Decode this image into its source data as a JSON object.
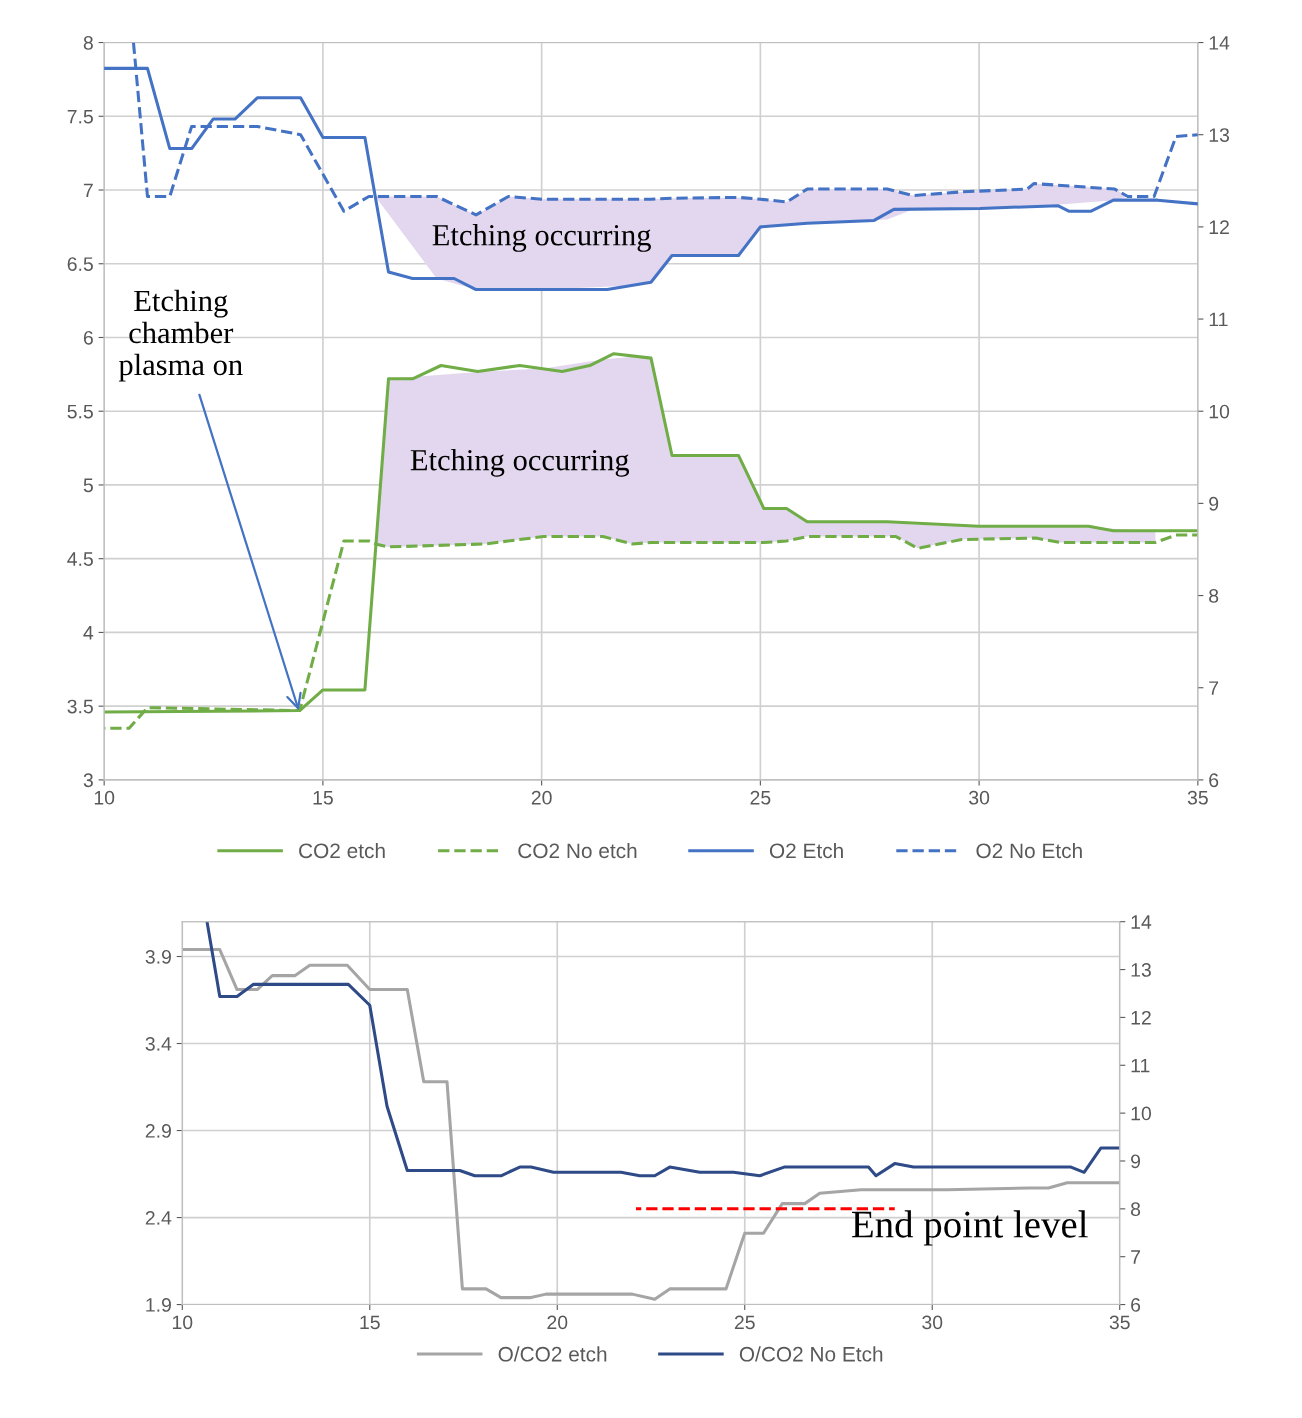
{
  "chart_data": [
    {
      "type": "line",
      "xlim": [
        10,
        35
      ],
      "xticks": [
        10,
        15,
        20,
        25,
        30,
        35
      ],
      "ylim": [
        3,
        8
      ],
      "yticks": [
        3,
        3.5,
        4,
        4.5,
        5,
        5.5,
        6,
        6.5,
        7,
        7.5,
        8
      ],
      "y2lim": [
        6,
        14
      ],
      "y2ticks": [
        6,
        7,
        8,
        9,
        10,
        11,
        12,
        13,
        14
      ],
      "grid": true,
      "legend": "bottom",
      "series": [
        {
          "name": "CO2 etch",
          "color": "#70ad47",
          "line_style": "solid",
          "x": [
            10,
            14.47,
            15.0,
            15.96,
            16.5,
            17.05,
            17.7,
            18.54,
            19.5,
            20.47,
            21.1,
            21.65,
            22.5,
            22.98,
            24.5,
            25.08,
            25.6,
            26.07,
            27.9,
            30.0,
            32.5,
            33.07,
            35.0
          ],
          "values": [
            3.46,
            3.47,
            3.61,
            3.61,
            5.72,
            5.72,
            5.81,
            5.77,
            5.81,
            5.77,
            5.81,
            5.89,
            5.86,
            5.2,
            5.2,
            4.84,
            4.84,
            4.75,
            4.75,
            4.72,
            4.72,
            4.69,
            4.69
          ]
        },
        {
          "name": "CO2 No etch",
          "color": "#70ad47",
          "line_style": "dashed",
          "x": [
            10,
            10.57,
            10.99,
            14.47,
            15.48,
            16.05,
            16.2,
            16.5,
            18.7,
            20.04,
            21.4,
            22.07,
            22.5,
            22.98,
            24.5,
            25.08,
            25.6,
            26.07,
            28.1,
            28.6,
            29.6,
            31.3,
            31.84,
            34.03,
            34.5,
            35
          ],
          "values": [
            3.35,
            3.35,
            3.49,
            3.47,
            4.62,
            4.62,
            4.6,
            4.58,
            4.6,
            4.65,
            4.65,
            4.6,
            4.61,
            4.61,
            4.61,
            4.61,
            4.62,
            4.65,
            4.65,
            4.57,
            4.63,
            4.64,
            4.61,
            4.61,
            4.66,
            4.66
          ],
          "lower": [
            null,
            null,
            null,
            null,
            null,
            null,
            4.6,
            4.58,
            4.6,
            4.65,
            4.65,
            4.6,
            4.61,
            4.61,
            4.61,
            4.61,
            4.62,
            4.65,
            4.65,
            4.57,
            4.63,
            4.64,
            4.61,
            4.61,
            null,
            null
          ],
          "upper": [
            null,
            null,
            null,
            null,
            null,
            null,
            4.6,
            5.72,
            5.77,
            5.79,
            5.85,
            5.87,
            5.86,
            5.2,
            5.2,
            4.84,
            4.84,
            4.75,
            4.74,
            4.73,
            4.72,
            4.72,
            4.72,
            4.69,
            null,
            null
          ]
        },
        {
          "name": "O2 Etch",
          "color": "#4472c4",
          "line_style": "solid",
          "axis": "y2",
          "x": [
            10,
            10.99,
            11.5,
            12.0,
            12.49,
            12.99,
            13.5,
            14.49,
            15.0,
            15.96,
            16.5,
            17.05,
            18.0,
            18.5,
            21.5,
            22.5,
            22.98,
            24.5,
            25.0,
            26.07,
            27.6,
            28.05,
            30.02,
            31.8,
            32.05,
            32.56,
            33.07,
            34.08,
            35.0
          ],
          "values": [
            13.72,
            13.72,
            12.85,
            12.85,
            13.17,
            13.17,
            13.4,
            13.4,
            12.97,
            12.97,
            11.51,
            11.44,
            11.44,
            11.32,
            11.32,
            11.4,
            11.69,
            11.69,
            12.0,
            12.04,
            12.07,
            12.19,
            12.2,
            12.23,
            12.17,
            12.17,
            12.29,
            12.29,
            12.25
          ]
        },
        {
          "name": "O2 No Etch",
          "color": "#4472c4",
          "line_style": "dashed",
          "axis": "y2",
          "x": [
            10.67,
            10.99,
            11.5,
            12.0,
            13.5,
            14.49,
            15.48,
            16.05,
            16.2,
            17.6,
            18.5,
            19.24,
            20.0,
            22.0,
            22.5,
            22.98,
            24.5,
            25.0,
            25.6,
            26.07,
            27.9,
            28.5,
            29.6,
            31.1,
            31.25,
            33.1,
            33.4,
            34.0,
            34.5,
            35.0
          ],
          "values": [
            14.0,
            12.33,
            12.33,
            13.09,
            13.09,
            13.0,
            12.17,
            12.33,
            12.33,
            12.33,
            12.13,
            12.33,
            12.3,
            12.3,
            12.3,
            12.31,
            12.32,
            12.3,
            12.27,
            12.41,
            12.41,
            12.34,
            12.38,
            12.41,
            12.47,
            12.41,
            12.33,
            12.33,
            12.98,
            13.0
          ],
          "lower": [
            null,
            null,
            null,
            null,
            null,
            null,
            null,
            null,
            12.33,
            11.44,
            11.32,
            11.32,
            11.32,
            11.36,
            11.4,
            11.69,
            11.69,
            12.0,
            12.02,
            12.04,
            12.08,
            12.19,
            12.2,
            12.22,
            12.22,
            12.29,
            12.33,
            null,
            null,
            null
          ],
          "upper": [
            null,
            null,
            null,
            null,
            null,
            null,
            null,
            null,
            12.33,
            12.33,
            12.13,
            12.33,
            12.3,
            12.3,
            12.3,
            12.31,
            12.32,
            12.3,
            12.27,
            12.41,
            12.41,
            12.34,
            12.38,
            12.41,
            12.47,
            12.41,
            12.33,
            null,
            null,
            null
          ]
        }
      ],
      "annotations": [
        "Etching occurring",
        "Etching occurring",
        {
          "text": "Etching\nchamber\nplasma on",
          "x": 14.45,
          "y": 3.47
        }
      ]
    },
    {
      "type": "line",
      "xlim": [
        10,
        35
      ],
      "xticks": [
        10,
        15,
        20,
        25,
        30,
        35
      ],
      "ylim": [
        1.9,
        4.1
      ],
      "yticks": [
        1.9,
        2.4,
        2.9,
        3.4,
        3.9
      ],
      "y2lim": [
        6,
        14
      ],
      "y2ticks": [
        6,
        7,
        8,
        9,
        10,
        11,
        12,
        13,
        14
      ],
      "grid": true,
      "legend": "bottom",
      "series": [
        {
          "name": "O/CO2 etch",
          "color": "#a5a5a5",
          "line_style": "solid",
          "x": [
            10,
            11.0,
            11.46,
            12.0,
            12.4,
            13.0,
            13.4,
            14.4,
            15.0,
            16.0,
            16.44,
            17.06,
            17.47,
            18.1,
            18.5,
            19.3,
            19.7,
            22.0,
            22.6,
            23.0,
            24.5,
            25.0,
            25.5,
            26.0,
            26.6,
            27.0,
            28.1,
            30.4,
            32.6,
            33.1,
            33.6,
            35.0
          ],
          "values": [
            3.94,
            3.94,
            3.71,
            3.71,
            3.79,
            3.79,
            3.85,
            3.85,
            3.71,
            3.71,
            3.18,
            3.18,
            1.99,
            1.99,
            1.94,
            1.94,
            1.96,
            1.96,
            1.93,
            1.99,
            1.99,
            2.31,
            2.31,
            2.48,
            2.48,
            2.54,
            2.56,
            2.56,
            2.57,
            2.57,
            2.6,
            2.6
          ]
        },
        {
          "name": "O/CO2 No Etch",
          "color": "#2e4a87",
          "line_style": "solid",
          "x": [
            10.66,
            11.0,
            11.46,
            11.9,
            14.43,
            15.0,
            15.46,
            16.0,
            17.4,
            17.8,
            18.5,
            19.0,
            19.3,
            19.9,
            21.7,
            22.2,
            22.6,
            23.0,
            23.8,
            24.7,
            25.4,
            26.05,
            28.3,
            28.5,
            29.0,
            29.5,
            33.7,
            34.05,
            34.5,
            35.0
          ],
          "values": [
            4.1,
            3.67,
            3.67,
            3.74,
            3.74,
            3.62,
            3.04,
            2.67,
            2.67,
            2.64,
            2.64,
            2.69,
            2.69,
            2.66,
            2.66,
            2.64,
            2.64,
            2.69,
            2.66,
            2.66,
            2.64,
            2.69,
            2.69,
            2.64,
            2.71,
            2.69,
            2.69,
            2.66,
            2.8,
            2.8
          ]
        },
        {
          "color": "#ff0000",
          "line_style": "dashed",
          "x": [
            22.1,
            29.0
          ],
          "values": [
            2.45,
            2.45
          ]
        }
      ],
      "annotations": [
        "End point level"
      ]
    }
  ]
}
